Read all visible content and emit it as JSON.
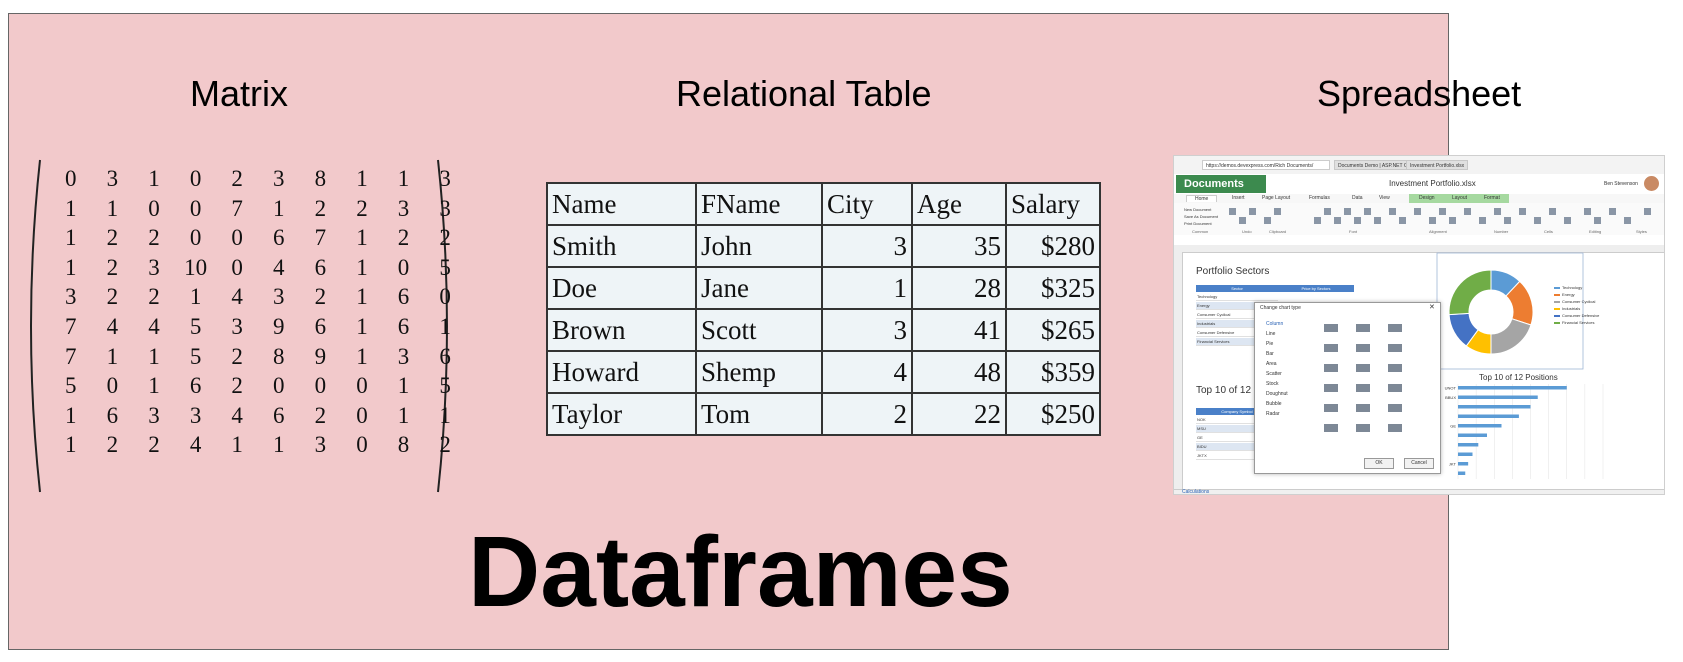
{
  "headings": {
    "matrix": "Matrix",
    "relational": "Relational Table",
    "spreadsheet": "Spreadsheet"
  },
  "title": "Dataframes",
  "matrix": {
    "rows": [
      [
        "0",
        "3",
        "1",
        "0",
        "2",
        "3",
        "8",
        "1",
        "1",
        "3"
      ],
      [
        "1",
        "1",
        "0",
        "0",
        "7",
        "1",
        "2",
        "2",
        "3",
        "3"
      ],
      [
        "1",
        "2",
        "2",
        "0",
        "0",
        "6",
        "7",
        "1",
        "2",
        "2"
      ],
      [
        "1",
        "2",
        "3",
        "10",
        "0",
        "4",
        "6",
        "1",
        "0",
        "5"
      ],
      [
        "3",
        "2",
        "2",
        "1",
        "4",
        "3",
        "2",
        "1",
        "6",
        "0"
      ],
      [
        "7",
        "4",
        "4",
        "5",
        "3",
        "9",
        "6",
        "1",
        "6",
        "1"
      ],
      [
        "7",
        "1",
        "1",
        "5",
        "2",
        "8",
        "9",
        "1",
        "3",
        "6"
      ],
      [
        "5",
        "0",
        "1",
        "6",
        "2",
        "0",
        "0",
        "0",
        "1",
        "5"
      ],
      [
        "1",
        "6",
        "3",
        "3",
        "4",
        "6",
        "2",
        "0",
        "1",
        "1"
      ],
      [
        "1",
        "2",
        "2",
        "4",
        "1",
        "1",
        "3",
        "0",
        "8",
        "2"
      ]
    ]
  },
  "relational_table": {
    "headers": [
      "Name",
      "FName",
      "City",
      "Age",
      "Salary"
    ],
    "rows": [
      [
        "Smith",
        "John",
        "3",
        "35",
        "$280"
      ],
      [
        "Doe",
        "Jane",
        "1",
        "28",
        "$325"
      ],
      [
        "Brown",
        "Scott",
        "3",
        "41",
        "$265"
      ],
      [
        "Howard",
        "Shemp",
        "4",
        "48",
        "$359"
      ],
      [
        "Taylor",
        "Tom",
        "2",
        "22",
        "$250"
      ]
    ]
  },
  "spreadsheet": {
    "browser": {
      "url": "https://demos.devexpress.com/Rich Documents/",
      "tab1": "Documents Demo | ASP.NET C...",
      "tab2": "Investment Portfolio.xlsx"
    },
    "app_name": "Documents",
    "filename": "Investment Portfolio.xlsx",
    "user": "Ben Stevenson",
    "ribbon_tabs": [
      "Home",
      "Insert",
      "Page Layout",
      "Formulas",
      "Data",
      "View",
      "Design",
      "Layout",
      "Format"
    ],
    "ribbon_groups": [
      "Common",
      "Undo",
      "Clipboard",
      "Font",
      "Alignment",
      "Number",
      "Cells",
      "Editing",
      "Styles"
    ],
    "common_items": [
      "New Document",
      "Save As Document",
      "Print Document"
    ],
    "sheet_title": "Portfolio Sectors",
    "sector_header": "Sector",
    "price_header": "Price by Sectors",
    "sectors": [
      "Technology",
      "Energy",
      "Consumer Cyclical",
      "Industrials",
      "Consumer Defensive",
      "Financial Services"
    ],
    "top10_left": "Top 10 of 12",
    "company_header": "Company Symbol",
    "symbols": [
      "NOK",
      "MSU",
      "GE",
      "BIDU",
      "JKTX"
    ],
    "dialog": {
      "title": "Change chart type",
      "types": [
        "Column",
        "Line",
        "Pie",
        "Bar",
        "Area",
        "Scatter",
        "Stock",
        "Doughnut",
        "Bubble",
        "Radar"
      ],
      "ok": "OK",
      "cancel": "Cancel"
    },
    "donut": {
      "colors": [
        "#5b9bd5",
        "#ed7d31",
        "#a5a5a5",
        "#ffc000",
        "#4472c4",
        "#70ad47"
      ],
      "values": [
        12,
        18,
        20,
        10,
        14,
        26
      ]
    },
    "legend": [
      "Technology",
      "Energy",
      "Consumer Cyclical",
      "Industrials",
      "Consumer Defensive",
      "Financial Services"
    ],
    "top10_right": "Top 10 of 12 Positions",
    "bars": [
      0.75,
      0.55,
      0.5,
      0.42,
      0.3,
      0.2,
      0.14,
      0.1,
      0.07,
      0.05
    ],
    "bar_labels": [
      "UNOT",
      "BBUX",
      "",
      "",
      "GE",
      "",
      "",
      "",
      "JKT",
      ""
    ],
    "sheet_tab": "Calculations"
  }
}
